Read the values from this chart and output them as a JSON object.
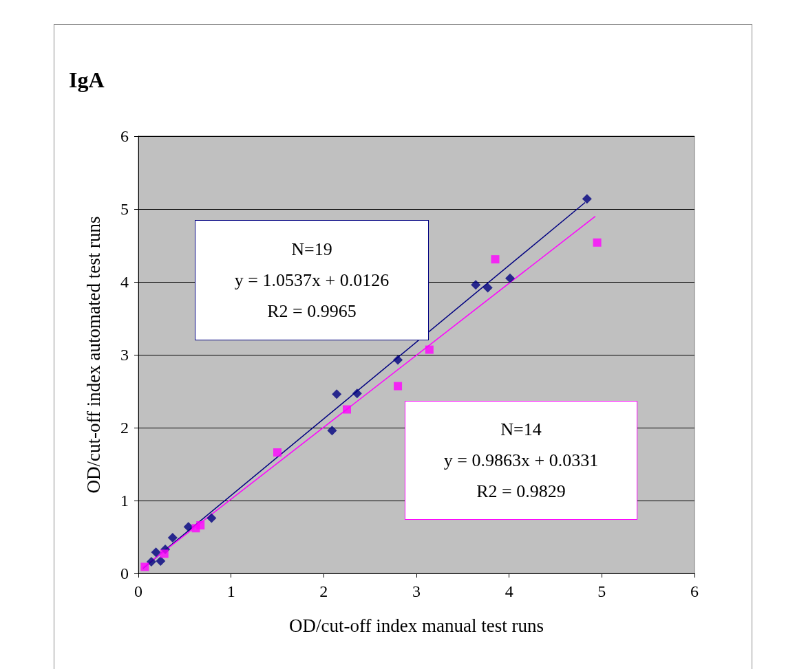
{
  "chart_data": {
    "type": "scatter",
    "title": "IgA",
    "xlabel": "OD/cut-off index manual test runs",
    "ylabel": "OD/cut-off index automated test runs",
    "xlim": [
      0,
      6
    ],
    "xticks": [
      0,
      1,
      2,
      3,
      4,
      5,
      6
    ],
    "ylim": [
      0,
      6
    ],
    "yticks": [
      0,
      1,
      2,
      3,
      4,
      5,
      6
    ],
    "grid": "y",
    "annotations": [
      "N=19\ny = 1.0537x + 0.0126\nR2 = 0.9965",
      "N=14\ny = 0.9863x + 0.0331\nR2 = 0.9829"
    ],
    "series": [
      {
        "color": "#000080",
        "marker": "diamond",
        "x": [
          4.84,
          3.64,
          3.77,
          4.01,
          2.8,
          2.14,
          2.36,
          2.09,
          0.79,
          0.54,
          0.37,
          0.29,
          0.19,
          0.24,
          0.14
        ],
        "values": [
          5.14,
          3.96,
          3.92,
          4.05,
          2.93,
          2.46,
          2.47,
          1.96,
          0.76,
          0.64,
          0.49,
          0.33,
          0.29,
          0.17,
          0.16
        ]
      },
      {
        "color": "#ff00ff",
        "marker": "square",
        "x": [
          4.95,
          3.85,
          3.14,
          2.8,
          2.25,
          1.5,
          0.67,
          0.62,
          0.28,
          0.07
        ],
        "values": [
          4.54,
          4.31,
          3.07,
          2.57,
          2.25,
          1.66,
          0.66,
          0.62,
          0.27,
          0.09
        ]
      },
      {
        "type": "line",
        "color": "#000080",
        "marker": "none",
        "line_style": "solid",
        "x": [
          0.05,
          4.82
        ],
        "values": [
          0.07,
          5.09
        ]
      },
      {
        "type": "line",
        "color": "#ff00ff",
        "marker": "none",
        "line_style": "solid",
        "x": [
          0.05,
          4.93
        ],
        "values": [
          0.08,
          4.9
        ]
      }
    ]
  }
}
